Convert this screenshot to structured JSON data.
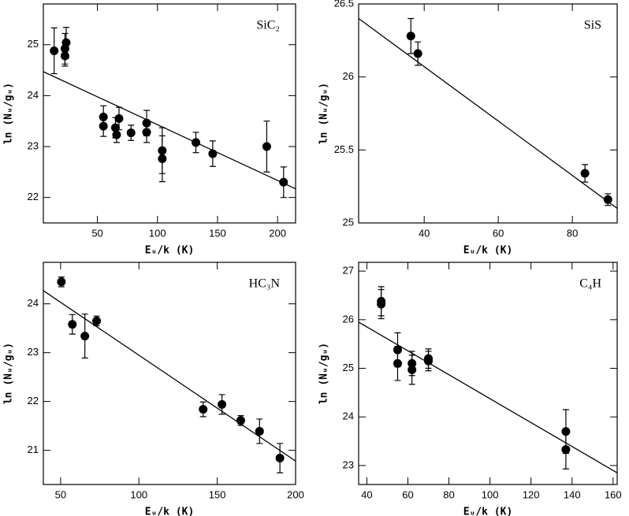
{
  "chart_data": [
    {
      "type": "scatter",
      "title": "SiC₂",
      "x_label": "Eᵤ/k (K)",
      "y_label": "ln (Nᵤ/gᵤ)",
      "x": [
        14,
        23,
        23,
        24,
        55,
        55,
        65,
        66,
        68,
        78,
        91,
        91,
        104,
        104,
        132,
        146,
        191,
        205
      ],
      "values": [
        24.88,
        24.78,
        24.92,
        25.04,
        23.58,
        23.4,
        23.37,
        23.23,
        23.55,
        23.27,
        23.46,
        23.28,
        22.92,
        22.76,
        23.08,
        22.86,
        23.0,
        22.3
      ],
      "errors": [
        0.45,
        0.2,
        0.3,
        0.3,
        0.22,
        0.2,
        0.2,
        0.15,
        0.22,
        0.15,
        0.25,
        0.2,
        0.45,
        0.45,
        0.2,
        0.25,
        0.5,
        0.3
      ],
      "fit": {
        "x": [
          5,
          215
        ],
        "values": [
          24.47,
          22.17
        ]
      },
      "xlim": [
        5,
        215
      ],
      "ylim": [
        21.5,
        25.8
      ],
      "xticks": [
        50,
        100,
        150,
        200
      ],
      "yticks": [
        22,
        23,
        24,
        25
      ]
    },
    {
      "type": "scatter",
      "title": "SiS",
      "x_label": "Eᵤ/k (K)",
      "y_label": "ln (Nᵤ/gᵤ)",
      "x": [
        36.4,
        38.3,
        83.4,
        89.6
      ],
      "values": [
        26.28,
        26.16,
        25.34,
        25.16
      ],
      "errors": [
        0.12,
        0.08,
        0.06,
        0.04
      ],
      "fit": {
        "x": [
          22.3,
          92.1
        ],
        "values": [
          26.4,
          25.1
        ]
      },
      "xlim": [
        22.3,
        92.1
      ],
      "ylim": [
        25,
        26.5
      ],
      "xticks": [
        40,
        60,
        80
      ],
      "yticks": [
        25,
        25.5,
        26,
        26.5
      ]
    },
    {
      "type": "scatter",
      "title": "HC₃N",
      "x_label": "Eᵤ/k (K)",
      "y_label": "ln (Nᵤ/gᵤ)",
      "x": [
        50.5,
        57.5,
        65.5,
        73,
        141,
        153,
        165,
        177,
        190
      ],
      "values": [
        24.45,
        23.58,
        23.34,
        23.65,
        21.84,
        21.94,
        21.61,
        21.39,
        20.84
      ],
      "errors": [
        0.1,
        0.2,
        0.45,
        0.1,
        0.15,
        0.2,
        0.1,
        0.25,
        0.3
      ],
      "fit": {
        "x": [
          39,
          200
        ],
        "values": [
          24.27,
          20.78
        ]
      },
      "xlim": [
        39,
        200
      ],
      "ylim": [
        20.3,
        24.85
      ],
      "xticks": [
        50,
        100,
        150,
        200
      ],
      "yticks": [
        21,
        22,
        23,
        24
      ]
    },
    {
      "type": "scatter",
      "title": "C₄H",
      "x_label": "Eᵤ/k (K)",
      "y_label": "ln (Nᵤ/gᵤ)",
      "x": [
        47,
        47,
        55,
        55,
        62,
        62,
        70,
        70,
        137,
        137
      ],
      "values": [
        26.38,
        26.32,
        25.38,
        25.1,
        25.1,
        24.97,
        25.2,
        25.15,
        23.7,
        23.33
      ],
      "errors": [
        0.3,
        0.3,
        0.35,
        0.35,
        0.25,
        0.3,
        0.2,
        0.2,
        0.45,
        0.4
      ],
      "fit": {
        "x": [
          36,
          162
        ],
        "values": [
          25.95,
          22.85
        ]
      },
      "xlim": [
        36,
        162
      ],
      "ylim": [
        22.61,
        27.18
      ],
      "xticks": [
        40,
        60,
        80,
        100,
        120,
        140,
        160
      ],
      "yticks": [
        23,
        24,
        25,
        26,
        27
      ]
    }
  ]
}
